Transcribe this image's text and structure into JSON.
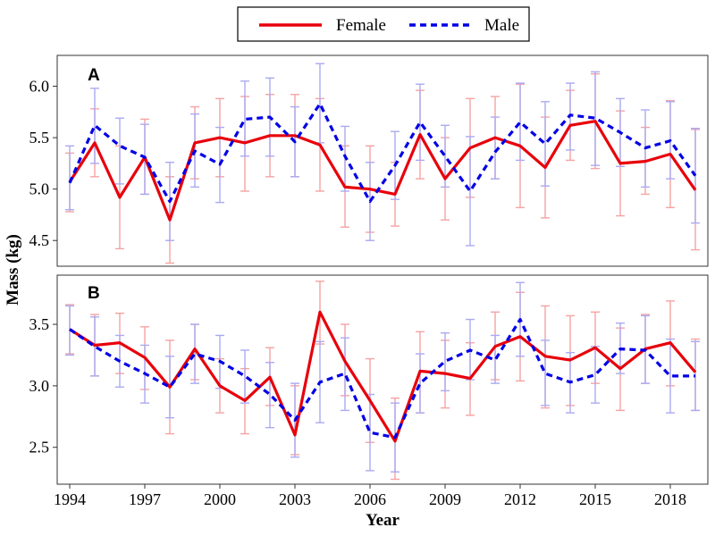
{
  "chart_data": {
    "type": "line",
    "ylabel": "Mass (kg)",
    "xlabel": "Year",
    "legend": {
      "position": "top",
      "entries": [
        {
          "name": "Female",
          "color": "#e8000b",
          "style": "solid"
        },
        {
          "name": "Male",
          "color": "#0000e6",
          "style": "dashed"
        }
      ]
    },
    "x": [
      1994,
      1995,
      1996,
      1997,
      1998,
      1999,
      2000,
      2001,
      2002,
      2003,
      2004,
      2005,
      2006,
      2007,
      2008,
      2009,
      2010,
      2011,
      2012,
      2013,
      2014,
      2015,
      2016,
      2017,
      2018,
      2019
    ],
    "x_ticks": [
      "1994",
      "1997",
      "2000",
      "2003",
      "2006",
      "2009",
      "2012",
      "2015",
      "2018"
    ],
    "x_tick_values": [
      1994,
      1997,
      2000,
      2003,
      2006,
      2009,
      2012,
      2015,
      2018
    ],
    "xlim": [
      1993.5,
      2019.5
    ],
    "errorbar_colors": {
      "Female": "#f5a3a3",
      "Male": "#aaaaf2"
    },
    "panels": [
      {
        "label": "A",
        "ylim": [
          4.25,
          6.3
        ],
        "y_ticks": [
          "4.5",
          "5.0",
          "5.5",
          "6.0"
        ],
        "y_tick_values": [
          4.5,
          5.0,
          5.5,
          6.0
        ],
        "series": [
          {
            "name": "Female",
            "values": [
              5.07,
              5.45,
              4.92,
              5.31,
              4.7,
              5.45,
              5.5,
              5.45,
              5.52,
              5.52,
              5.43,
              5.02,
              5.0,
              4.95,
              5.53,
              5.1,
              5.4,
              5.5,
              5.42,
              5.21,
              5.62,
              5.66,
              5.25,
              5.27,
              5.34,
              4.99
            ],
            "err_low": [
              4.78,
              5.12,
              4.42,
              4.95,
              4.28,
              5.1,
              5.12,
              4.98,
              5.12,
              5.12,
              4.98,
              4.63,
              4.58,
              4.64,
              5.1,
              4.7,
              4.92,
              5.1,
              4.82,
              4.72,
              5.28,
              5.2,
              4.74,
              4.95,
              4.82,
              4.41
            ],
            "err_high": [
              5.35,
              5.78,
              5.42,
              5.68,
              5.12,
              5.8,
              5.88,
              5.9,
              5.92,
              5.92,
              5.88,
              5.42,
              5.42,
              5.26,
              5.96,
              5.5,
              5.88,
              5.9,
              6.02,
              5.7,
              5.96,
              6.12,
              5.76,
              5.6,
              5.86,
              5.58
            ]
          },
          {
            "name": "Male",
            "values": [
              5.06,
              5.62,
              5.42,
              5.31,
              4.88,
              5.37,
              5.24,
              5.68,
              5.7,
              5.46,
              5.83,
              5.32,
              4.88,
              5.23,
              5.65,
              5.32,
              4.98,
              5.36,
              5.65,
              5.44,
              5.72,
              5.69,
              5.55,
              5.4,
              5.47,
              5.13
            ],
            "err_low": [
              4.8,
              5.25,
              5.05,
              4.95,
              4.5,
              5.02,
              4.87,
              5.32,
              5.32,
              5.12,
              5.45,
              4.98,
              4.5,
              4.9,
              5.28,
              5.02,
              4.45,
              5.1,
              5.28,
              5.03,
              5.38,
              5.23,
              5.22,
              5.02,
              5.1,
              4.67
            ],
            "err_high": [
              5.42,
              5.98,
              5.69,
              5.63,
              5.26,
              5.73,
              5.6,
              6.05,
              6.08,
              5.8,
              6.22,
              5.61,
              5.26,
              5.56,
              6.02,
              5.62,
              5.51,
              5.7,
              6.03,
              5.85,
              6.03,
              6.14,
              5.88,
              5.77,
              5.85,
              5.59
            ]
          }
        ]
      },
      {
        "label": "B",
        "ylim": [
          2.2,
          3.9
        ],
        "y_ticks": [
          "2.5",
          "3.0",
          "3.5"
        ],
        "y_tick_values": [
          2.5,
          3.0,
          3.5
        ],
        "series": [
          {
            "name": "Female",
            "values": [
              3.46,
              3.33,
              3.35,
              3.23,
              2.99,
              3.3,
              3.0,
              2.88,
              3.07,
              2.6,
              3.6,
              3.2,
              2.88,
              2.55,
              3.12,
              3.1,
              3.06,
              3.32,
              3.4,
              3.24,
              3.21,
              3.31,
              3.14,
              3.3,
              3.35,
              3.11
            ],
            "err_low": [
              3.26,
              3.08,
              3.1,
              2.97,
              2.61,
              3.05,
              2.78,
              2.61,
              2.84,
              2.44,
              3.34,
              2.92,
              2.54,
              2.24,
              2.78,
              2.82,
              2.76,
              3.05,
              3.04,
              2.82,
              2.84,
              3.02,
              2.8,
              3.02,
              3.0,
              2.8
            ],
            "err_high": [
              3.66,
              3.58,
              3.59,
              3.48,
              3.37,
              3.5,
              3.22,
              3.14,
              3.31,
              3.0,
              3.85,
              3.5,
              3.22,
              2.9,
              3.44,
              3.37,
              3.35,
              3.6,
              3.76,
              3.65,
              3.57,
              3.6,
              3.47,
              3.58,
              3.69,
              3.38
            ]
          },
          {
            "name": "Male",
            "values": [
              3.46,
              3.32,
              3.2,
              3.1,
              2.99,
              3.26,
              3.2,
              3.08,
              2.93,
              2.72,
              3.03,
              3.1,
              2.62,
              2.58,
              3.02,
              3.2,
              3.29,
              3.21,
              3.54,
              3.1,
              3.03,
              3.09,
              3.3,
              3.29,
              3.08,
              3.08
            ],
            "err_low": [
              3.25,
              3.08,
              2.99,
              2.86,
              2.74,
              3.02,
              2.98,
              2.86,
              2.66,
              2.42,
              2.7,
              2.8,
              2.31,
              2.3,
              2.78,
              2.96,
              3.05,
              3.02,
              3.24,
              2.84,
              2.78,
              2.86,
              3.1,
              3.02,
              2.78,
              2.8
            ],
            "err_high": [
              3.65,
              3.56,
              3.41,
              3.33,
              3.24,
              3.5,
              3.41,
              3.29,
              3.19,
              3.02,
              3.36,
              3.39,
              2.93,
              2.86,
              3.26,
              3.43,
              3.54,
              3.41,
              3.84,
              3.37,
              3.27,
              3.32,
              3.51,
              3.57,
              3.38,
              3.36
            ]
          }
        ]
      }
    ]
  }
}
